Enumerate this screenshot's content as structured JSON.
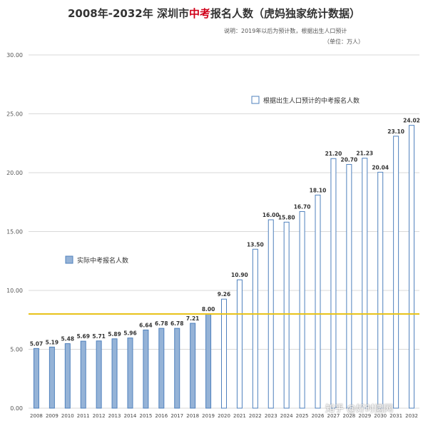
{
  "title": {
    "part1": "2008年-2032年 深圳市",
    "highlight": "中考",
    "part2": "报名人数（虎妈独家统计数据）"
  },
  "notes": {
    "line1": "说明：2019年以后为预计数，根据出生人口预计",
    "line2": "（单位：万人）"
  },
  "watermark": "知乎 @好时圆网",
  "chart_data": {
    "type": "bar",
    "categories": [
      "2008",
      "2009",
      "2010",
      "2011",
      "2012",
      "2013",
      "2014",
      "2015",
      "2016",
      "2017",
      "2018",
      "2019",
      "2020",
      "2021",
      "2022",
      "2023",
      "2024",
      "2025",
      "2026",
      "2027",
      "2028",
      "2029",
      "2030",
      "2031",
      "2032"
    ],
    "values": [
      5.07,
      5.19,
      5.48,
      5.69,
      5.71,
      5.89,
      5.96,
      6.64,
      6.78,
      6.78,
      7.21,
      8.0,
      9.26,
      10.9,
      13.5,
      16.0,
      15.8,
      16.7,
      18.1,
      21.2,
      20.7,
      21.23,
      20.04,
      23.1,
      24.02
    ],
    "value_labels": [
      "5.07",
      "5.19",
      "5.48",
      "5.69",
      "5.71",
      "5.89",
      "5.96",
      "6.64",
      "6.78",
      "6.78",
      "7.21",
      "8.00",
      "9.26",
      "10.90",
      "13.50",
      "16.00",
      "15.80",
      "16.70",
      "18.10",
      "21.20",
      "20.70",
      "21.23",
      "20.04",
      "23.10",
      "24.02"
    ],
    "actual_count": 12,
    "series": [
      {
        "name": "实际中考报名人数",
        "color": "#95b3d7",
        "stroke": "#4f81bd"
      },
      {
        "name": "根据出生人口预计的中考报名人数",
        "color": "#ffffff",
        "stroke": "#4f81bd"
      }
    ],
    "ylim": [
      0,
      30
    ],
    "yticks": [
      "0.00",
      "5.00",
      "10.00",
      "15.00",
      "20.00",
      "25.00",
      "30.00"
    ],
    "reference_line": {
      "value": 8.0,
      "color": "#e8c21a"
    },
    "grid": true
  }
}
